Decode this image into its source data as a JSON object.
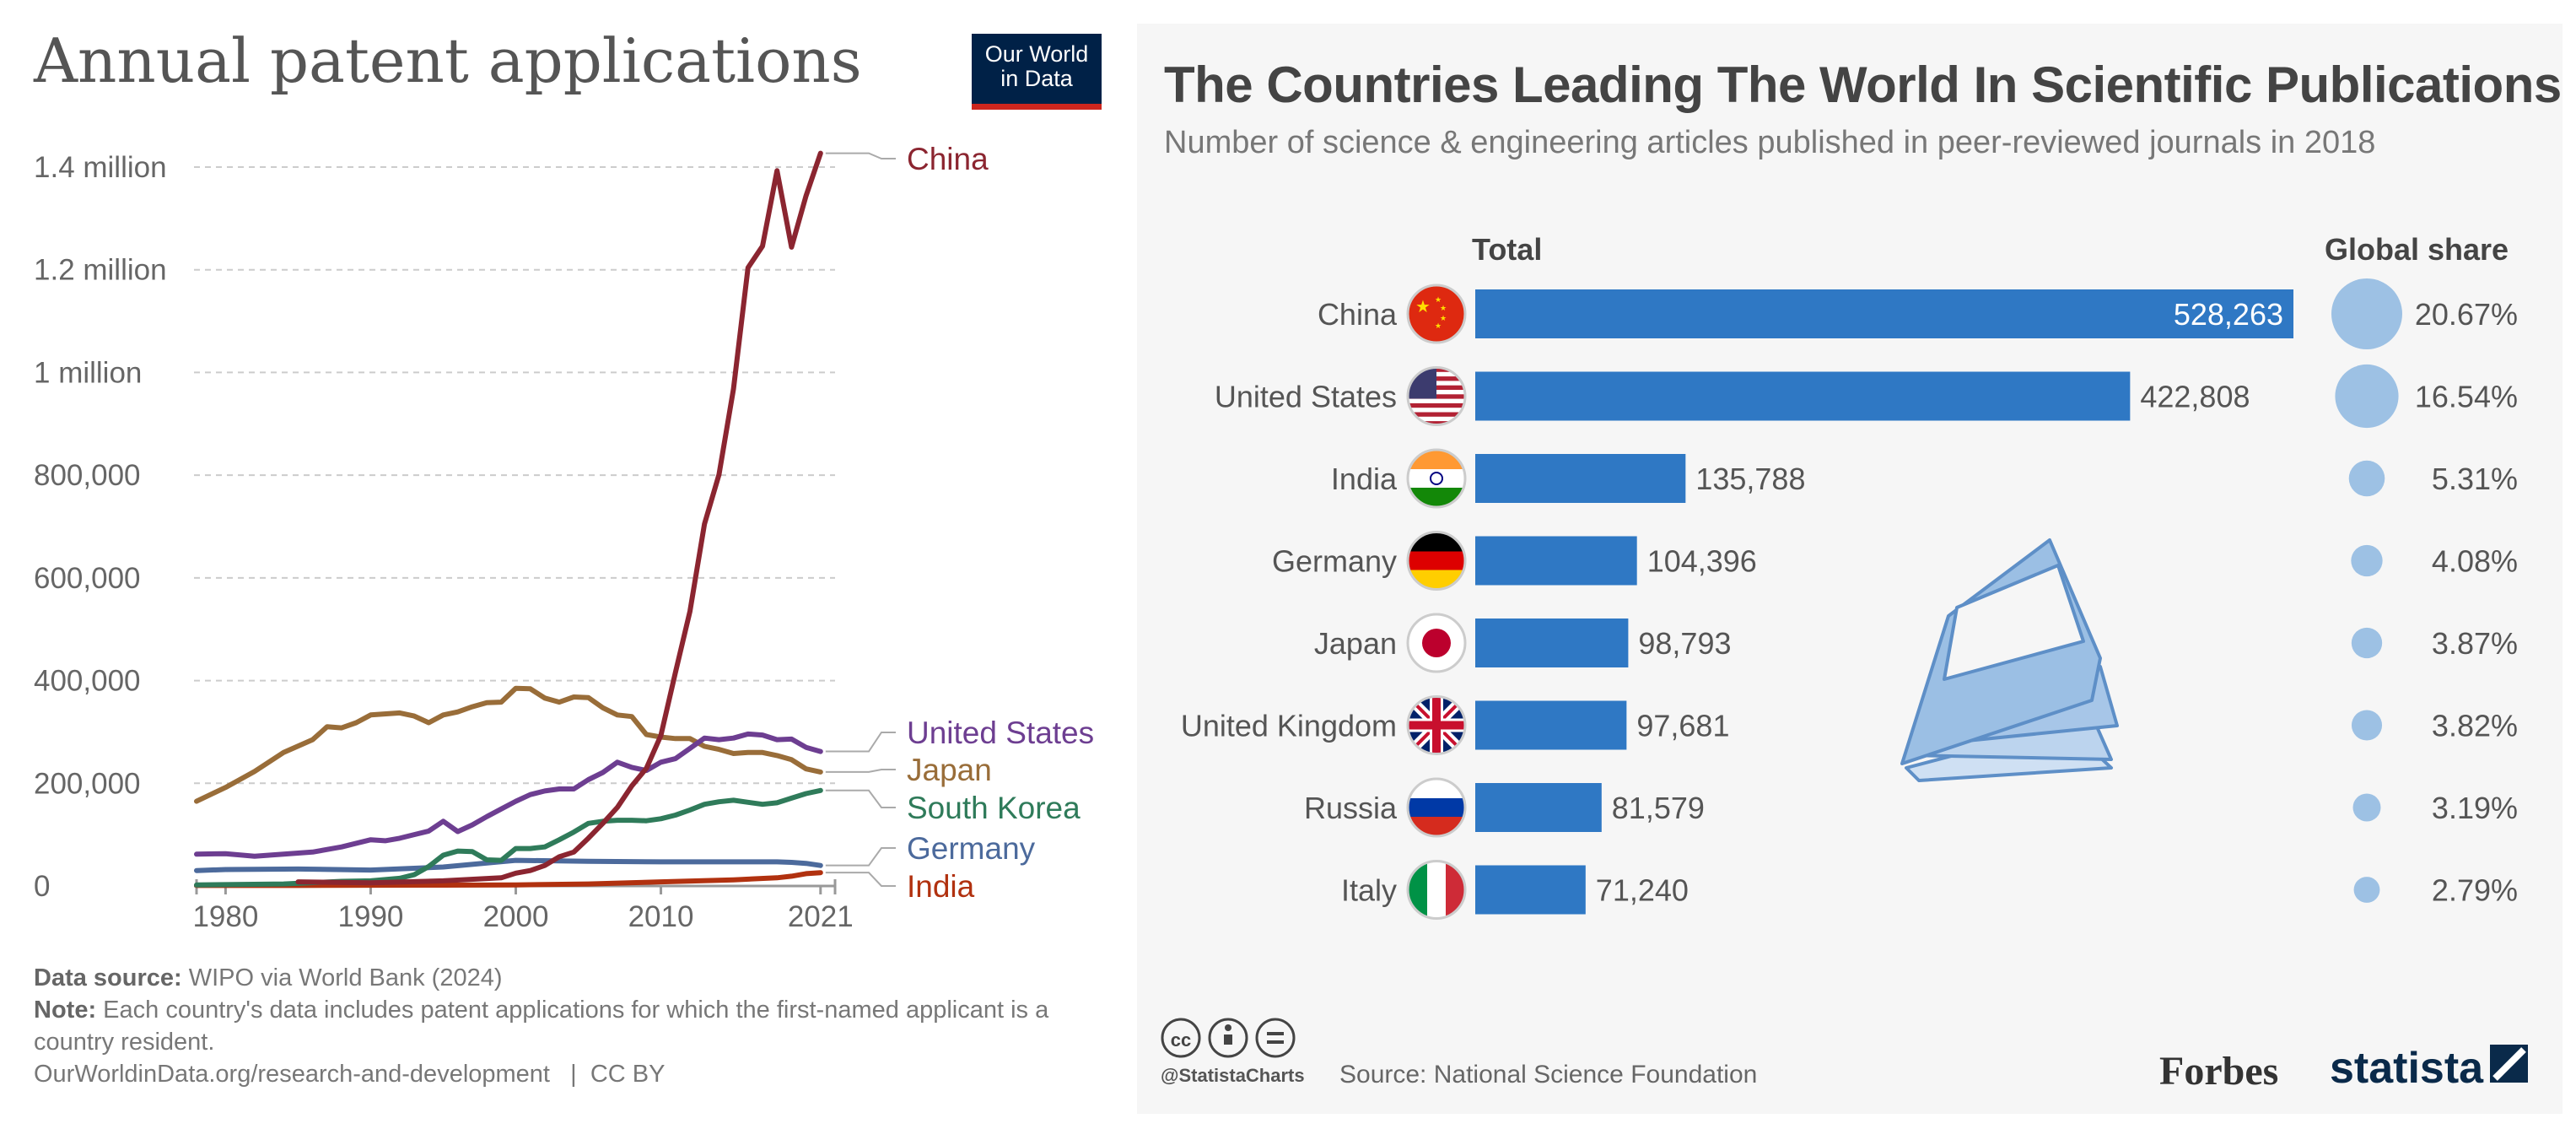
{
  "left_chart": {
    "title": "Annual patent applications",
    "logo": {
      "line1": "Our World",
      "line2": "in Data"
    },
    "footer": {
      "source_label": "Data source:",
      "source_text": "WIPO via World Bank (2024)",
      "note_label": "Note:",
      "note_text": "Each country's data includes patent applications for which the first-named applicant is a country resident.",
      "url": "OurWorldinData.org/research-and-development",
      "license": "CC BY"
    }
  },
  "right_chart": {
    "title": "The Countries Leading The World In Scientific Publications",
    "subtitle": "Number of science & engineering articles published in peer-reviewed journals in 2018",
    "total_header": "Total",
    "share_header": "Global share",
    "source_line": "Source: National Science Foundation",
    "handle": "@StatistaCharts",
    "brand_forbes": "Forbes",
    "brand_statista": "statista"
  },
  "chart_data": [
    {
      "type": "line",
      "title": "Annual patent applications",
      "xlabel": "",
      "ylabel": "",
      "xlim": [
        1978,
        2022
      ],
      "ylim": [
        0,
        1400000
      ],
      "x_ticks": [
        1980,
        1990,
        2000,
        2010,
        2021
      ],
      "x_tick_labels": [
        "1980",
        "1990",
        "2000",
        "2010",
        "2021"
      ],
      "y_ticks": [
        0,
        200000,
        400000,
        600000,
        800000,
        1000000,
        1200000,
        1400000
      ],
      "y_tick_labels": [
        "0",
        "200,000",
        "400,000",
        "600,000",
        "800,000",
        "1 million",
        "1.2 million",
        "1.4 million"
      ],
      "series": [
        {
          "name": "China",
          "color": "#8b2530",
          "points": [
            [
              1985,
              8000
            ],
            [
              1990,
              6000
            ],
            [
              1995,
              10000
            ],
            [
              1999,
              16000
            ],
            [
              2000,
              25000
            ],
            [
              2001,
              30000
            ],
            [
              2002,
              40000
            ],
            [
              2003,
              57000
            ],
            [
              2004,
              66000
            ],
            [
              2005,
              93000
            ],
            [
              2006,
              122000
            ],
            [
              2007,
              153000
            ],
            [
              2008,
              195000
            ],
            [
              2009,
              229000
            ],
            [
              2010,
              293000
            ],
            [
              2011,
              416000
            ],
            [
              2012,
              535000
            ],
            [
              2013,
              705000
            ],
            [
              2014,
              801000
            ],
            [
              2015,
              968000
            ],
            [
              2016,
              1204000
            ],
            [
              2017,
              1246000
            ],
            [
              2018,
              1393000
            ],
            [
              2019,
              1244000
            ],
            [
              2020,
              1344000
            ],
            [
              2021,
              1427000
            ]
          ]
        },
        {
          "name": "United States",
          "color": "#6d3e91",
          "points": [
            [
              1978,
              62000
            ],
            [
              1980,
              63000
            ],
            [
              1982,
              58000
            ],
            [
              1984,
              62000
            ],
            [
              1986,
              66000
            ],
            [
              1988,
              76000
            ],
            [
              1990,
              90000
            ],
            [
              1991,
              88000
            ],
            [
              1992,
              93000
            ],
            [
              1993,
              100000
            ],
            [
              1994,
              107000
            ],
            [
              1995,
              126000
            ],
            [
              1996,
              106000
            ],
            [
              1997,
              119000
            ],
            [
              1998,
              135000
            ],
            [
              1999,
              150000
            ],
            [
              2000,
              165000
            ],
            [
              2001,
              178000
            ],
            [
              2002,
              185000
            ],
            [
              2003,
              189000
            ],
            [
              2004,
              189000
            ],
            [
              2005,
              207000
            ],
            [
              2006,
              221000
            ],
            [
              2007,
              241000
            ],
            [
              2008,
              231000
            ],
            [
              2009,
              225000
            ],
            [
              2010,
              241000
            ],
            [
              2011,
              248000
            ],
            [
              2012,
              268000
            ],
            [
              2013,
              288000
            ],
            [
              2014,
              285000
            ],
            [
              2015,
              288000
            ],
            [
              2016,
              296000
            ],
            [
              2017,
              294000
            ],
            [
              2018,
              285000
            ],
            [
              2019,
              286000
            ],
            [
              2020,
              270000
            ],
            [
              2021,
              262000
            ]
          ]
        },
        {
          "name": "Japan",
          "color": "#996d39",
          "points": [
            [
              1978,
              165000
            ],
            [
              1980,
              192000
            ],
            [
              1982,
              223000
            ],
            [
              1984,
              260000
            ],
            [
              1986,
              285000
            ],
            [
              1987,
              310000
            ],
            [
              1988,
              308000
            ],
            [
              1989,
              318000
            ],
            [
              1990,
              333000
            ],
            [
              1992,
              337000
            ],
            [
              1993,
              331000
            ],
            [
              1994,
              318000
            ],
            [
              1995,
              333000
            ],
            [
              1996,
              339000
            ],
            [
              1997,
              349000
            ],
            [
              1998,
              357000
            ],
            [
              1999,
              358000
            ],
            [
              2000,
              385000
            ],
            [
              2001,
              384000
            ],
            [
              2002,
              366000
            ],
            [
              2003,
              358000
            ],
            [
              2004,
              368000
            ],
            [
              2005,
              367000
            ],
            [
              2006,
              347000
            ],
            [
              2007,
              333000
            ],
            [
              2008,
              330000
            ],
            [
              2009,
              295000
            ],
            [
              2010,
              290000
            ],
            [
              2011,
              287000
            ],
            [
              2012,
              287000
            ],
            [
              2013,
              272000
            ],
            [
              2014,
              266000
            ],
            [
              2015,
              258000
            ],
            [
              2016,
              260000
            ],
            [
              2017,
              260000
            ],
            [
              2018,
              254000
            ],
            [
              2019,
              246000
            ],
            [
              2020,
              228000
            ],
            [
              2021,
              222000
            ]
          ]
        },
        {
          "name": "South Korea",
          "color": "#2f7b5a",
          "points": [
            [
              1978,
              2000
            ],
            [
              1984,
              4000
            ],
            [
              1988,
              9000
            ],
            [
              1990,
              10000
            ],
            [
              1992,
              15000
            ],
            [
              1993,
              22000
            ],
            [
              1994,
              38000
            ],
            [
              1995,
              60000
            ],
            [
              1996,
              68000
            ],
            [
              1997,
              67000
            ],
            [
              1998,
              51000
            ],
            [
              1999,
              50000
            ],
            [
              2000,
              73000
            ],
            [
              2001,
              73000
            ],
            [
              2002,
              76000
            ],
            [
              2003,
              90000
            ],
            [
              2004,
              105000
            ],
            [
              2005,
              122000
            ],
            [
              2006,
              126000
            ],
            [
              2007,
              128000
            ],
            [
              2008,
              128000
            ],
            [
              2009,
              127000
            ],
            [
              2010,
              131000
            ],
            [
              2011,
              138000
            ],
            [
              2012,
              148000
            ],
            [
              2013,
              159000
            ],
            [
              2014,
              164000
            ],
            [
              2015,
              167000
            ],
            [
              2016,
              163000
            ],
            [
              2017,
              159000
            ],
            [
              2018,
              162000
            ],
            [
              2019,
              171000
            ],
            [
              2020,
              180000
            ],
            [
              2021,
              186000
            ]
          ]
        },
        {
          "name": "Germany",
          "color": "#4c6a9c",
          "points": [
            [
              1978,
              30000
            ],
            [
              1980,
              32000
            ],
            [
              1985,
              33000
            ],
            [
              1990,
              31000
            ],
            [
              1995,
              37000
            ],
            [
              2000,
              50000
            ],
            [
              2005,
              48000
            ],
            [
              2010,
              47000
            ],
            [
              2015,
              47000
            ],
            [
              2018,
              47000
            ],
            [
              2019,
              46000
            ],
            [
              2020,
              44000
            ],
            [
              2021,
              40000
            ]
          ]
        },
        {
          "name": "India",
          "color": "#b1310f",
          "points": [
            [
              1978,
              1000
            ],
            [
              1985,
              1000
            ],
            [
              1990,
              1500
            ],
            [
              1995,
              1600
            ],
            [
              2000,
              2200
            ],
            [
              2005,
              4000
            ],
            [
              2010,
              8000
            ],
            [
              2015,
              12000
            ],
            [
              2018,
              16000
            ],
            [
              2019,
              19000
            ],
            [
              2020,
              24000
            ],
            [
              2021,
              26000
            ]
          ]
        }
      ]
    },
    {
      "type": "bar",
      "orientation": "horizontal",
      "title": "The Countries Leading The World In Scientific Publications",
      "categories": [
        "China",
        "United States",
        "India",
        "Germany",
        "Japan",
        "United Kingdom",
        "Russia",
        "Italy"
      ],
      "values": [
        528263,
        422808,
        135788,
        104396,
        98793,
        97681,
        81579,
        71240
      ],
      "value_labels": [
        "528,263",
        "422,808",
        "135,788",
        "104,396",
        "98,793",
        "97,681",
        "81,579",
        "71,240"
      ],
      "global_share": [
        20.67,
        16.54,
        5.31,
        4.08,
        3.87,
        3.82,
        3.19,
        2.79
      ],
      "global_share_labels": [
        "20.67%",
        "16.54%",
        "5.31%",
        "4.08%",
        "3.87%",
        "3.82%",
        "3.19%",
        "2.79%"
      ],
      "flags": [
        "china-flag",
        "united-states-flag",
        "india-flag",
        "germany-flag",
        "japan-flag",
        "united-kingdom-flag",
        "russia-flag",
        "italy-flag"
      ],
      "bar_color": "#2f78c4",
      "bubble_color": "#9dc1e4"
    }
  ]
}
